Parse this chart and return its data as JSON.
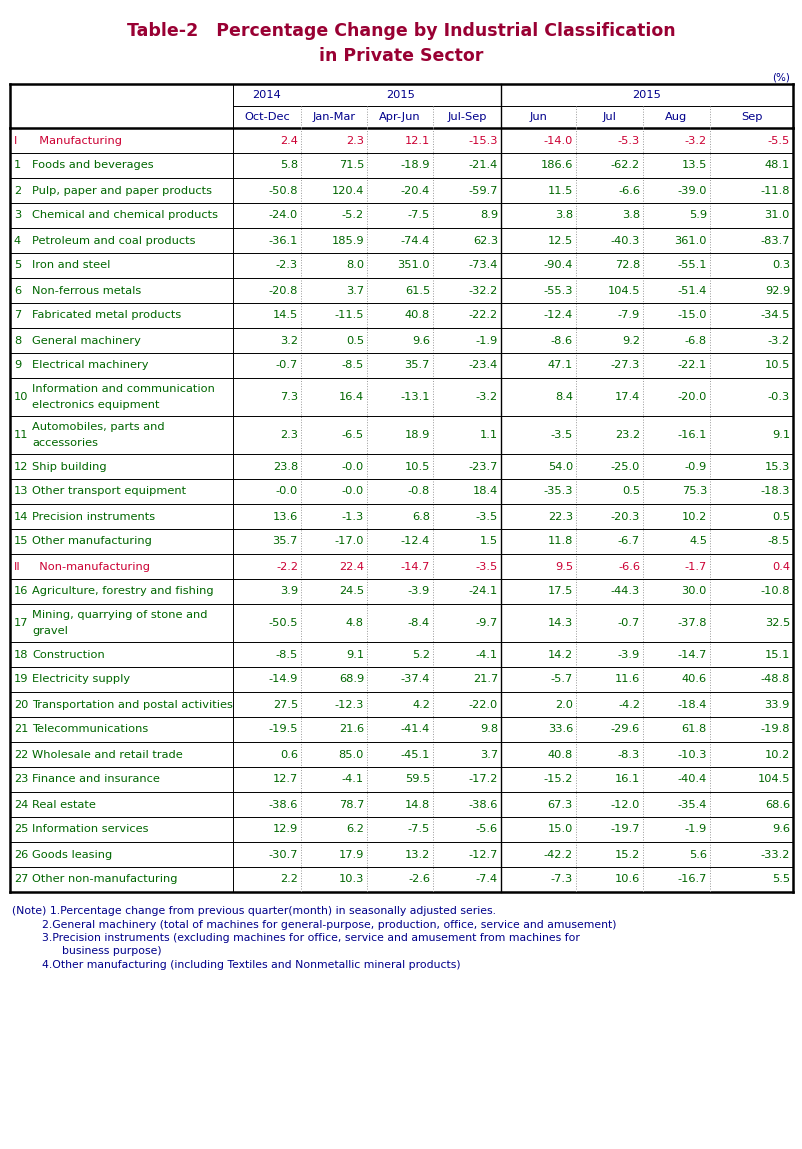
{
  "title_line1": "Table-2   Percentage Change by Industrial Classification",
  "title_line2": "in Private Sector",
  "title_color": "#990033",
  "unit_label": "(%)",
  "header_text_color": "#00008B",
  "rows": [
    {
      "num": "I",
      "label": "  Manufacturing",
      "values": [
        "2.4",
        "2.3",
        "12.1",
        "-15.3",
        "-14.0",
        "-5.3",
        "-3.2",
        "-5.5"
      ],
      "label_color": "#cc0033",
      "value_color": "#cc0033",
      "bold": true,
      "multiline": false
    },
    {
      "num": "1",
      "label": "Foods and beverages",
      "values": [
        "5.8",
        "71.5",
        "-18.9",
        "-21.4",
        "186.6",
        "-62.2",
        "13.5",
        "48.1"
      ],
      "label_color": "#006600",
      "value_color": "#006600",
      "bold": false,
      "multiline": false
    },
    {
      "num": "2",
      "label": "Pulp, paper and paper products",
      "values": [
        "-50.8",
        "120.4",
        "-20.4",
        "-59.7",
        "11.5",
        "-6.6",
        "-39.0",
        "-11.8"
      ],
      "label_color": "#006600",
      "value_color": "#006600",
      "bold": false,
      "multiline": false
    },
    {
      "num": "3",
      "label": "Chemical and chemical products",
      "values": [
        "-24.0",
        "-5.2",
        "-7.5",
        "8.9",
        "3.8",
        "3.8",
        "5.9",
        "31.0"
      ],
      "label_color": "#006600",
      "value_color": "#006600",
      "bold": false,
      "multiline": false
    },
    {
      "num": "4",
      "label": "Petroleum and coal products",
      "values": [
        "-36.1",
        "185.9",
        "-74.4",
        "62.3",
        "12.5",
        "-40.3",
        "361.0",
        "-83.7"
      ],
      "label_color": "#006600",
      "value_color": "#006600",
      "bold": false,
      "multiline": false
    },
    {
      "num": "5",
      "label": "Iron and steel",
      "values": [
        "-2.3",
        "8.0",
        "351.0",
        "-73.4",
        "-90.4",
        "72.8",
        "-55.1",
        "0.3"
      ],
      "label_color": "#006600",
      "value_color": "#006600",
      "bold": false,
      "multiline": false
    },
    {
      "num": "6",
      "label": "Non-ferrous metals",
      "values": [
        "-20.8",
        "3.7",
        "61.5",
        "-32.2",
        "-55.3",
        "104.5",
        "-51.4",
        "92.9"
      ],
      "label_color": "#006600",
      "value_color": "#006600",
      "bold": false,
      "multiline": false
    },
    {
      "num": "7",
      "label": "Fabricated metal products",
      "values": [
        "14.5",
        "-11.5",
        "40.8",
        "-22.2",
        "-12.4",
        "-7.9",
        "-15.0",
        "-34.5"
      ],
      "label_color": "#006600",
      "value_color": "#006600",
      "bold": false,
      "multiline": false
    },
    {
      "num": "8",
      "label": "General machinery",
      "values": [
        "3.2",
        "0.5",
        "9.6",
        "-1.9",
        "-8.6",
        "9.2",
        "-6.8",
        "-3.2"
      ],
      "label_color": "#006600",
      "value_color": "#006600",
      "bold": false,
      "multiline": false
    },
    {
      "num": "9",
      "label": "Electrical machinery",
      "values": [
        "-0.7",
        "-8.5",
        "35.7",
        "-23.4",
        "47.1",
        "-27.3",
        "-22.1",
        "10.5"
      ],
      "label_color": "#006600",
      "value_color": "#006600",
      "bold": false,
      "multiline": false
    },
    {
      "num": "10",
      "label": "Information and communication\nelectronics equipment",
      "values": [
        "7.3",
        "16.4",
        "-13.1",
        "-3.2",
        "8.4",
        "17.4",
        "-20.0",
        "-0.3"
      ],
      "label_color": "#006600",
      "value_color": "#006600",
      "bold": false,
      "multiline": true
    },
    {
      "num": "11",
      "label": "Automobiles, parts and\naccessories",
      "values": [
        "2.3",
        "-6.5",
        "18.9",
        "1.1",
        "-3.5",
        "23.2",
        "-16.1",
        "9.1"
      ],
      "label_color": "#006600",
      "value_color": "#006600",
      "bold": false,
      "multiline": true
    },
    {
      "num": "12",
      "label": "Ship building",
      "values": [
        "23.8",
        "-0.0",
        "10.5",
        "-23.7",
        "54.0",
        "-25.0",
        "-0.9",
        "15.3"
      ],
      "label_color": "#006600",
      "value_color": "#006600",
      "bold": false,
      "multiline": false
    },
    {
      "num": "13",
      "label": "Other transport equipment",
      "values": [
        "-0.0",
        "-0.0",
        "-0.8",
        "18.4",
        "-35.3",
        "0.5",
        "75.3",
        "-18.3"
      ],
      "label_color": "#006600",
      "value_color": "#006600",
      "bold": false,
      "multiline": false
    },
    {
      "num": "14",
      "label": "Precision instruments",
      "values": [
        "13.6",
        "-1.3",
        "6.8",
        "-3.5",
        "22.3",
        "-20.3",
        "10.2",
        "0.5"
      ],
      "label_color": "#006600",
      "value_color": "#006600",
      "bold": false,
      "multiline": false
    },
    {
      "num": "15",
      "label": "Other manufacturing",
      "values": [
        "35.7",
        "-17.0",
        "-12.4",
        "1.5",
        "11.8",
        "-6.7",
        "4.5",
        "-8.5"
      ],
      "label_color": "#006600",
      "value_color": "#006600",
      "bold": false,
      "multiline": false
    },
    {
      "num": "II",
      "label": "  Non-manufacturing",
      "values": [
        "-2.2",
        "22.4",
        "-14.7",
        "-3.5",
        "9.5",
        "-6.6",
        "-1.7",
        "0.4"
      ],
      "label_color": "#cc0033",
      "value_color": "#cc0033",
      "bold": true,
      "multiline": false
    },
    {
      "num": "16",
      "label": "Agriculture, forestry and fishing",
      "values": [
        "3.9",
        "24.5",
        "-3.9",
        "-24.1",
        "17.5",
        "-44.3",
        "30.0",
        "-10.8"
      ],
      "label_color": "#006600",
      "value_color": "#006600",
      "bold": false,
      "multiline": false
    },
    {
      "num": "17",
      "label": "Mining, quarrying of stone and\ngravel",
      "values": [
        "-50.5",
        "4.8",
        "-8.4",
        "-9.7",
        "14.3",
        "-0.7",
        "-37.8",
        "32.5"
      ],
      "label_color": "#006600",
      "value_color": "#006600",
      "bold": false,
      "multiline": true
    },
    {
      "num": "18",
      "label": "Construction",
      "values": [
        "-8.5",
        "9.1",
        "5.2",
        "-4.1",
        "14.2",
        "-3.9",
        "-14.7",
        "15.1"
      ],
      "label_color": "#006600",
      "value_color": "#006600",
      "bold": false,
      "multiline": false
    },
    {
      "num": "19",
      "label": "Electricity supply",
      "values": [
        "-14.9",
        "68.9",
        "-37.4",
        "21.7",
        "-5.7",
        "11.6",
        "40.6",
        "-48.8"
      ],
      "label_color": "#006600",
      "value_color": "#006600",
      "bold": false,
      "multiline": false
    },
    {
      "num": "20",
      "label": "Transportation and postal activities",
      "values": [
        "27.5",
        "-12.3",
        "4.2",
        "-22.0",
        "2.0",
        "-4.2",
        "-18.4",
        "33.9"
      ],
      "label_color": "#006600",
      "value_color": "#006600",
      "bold": false,
      "multiline": false
    },
    {
      "num": "21",
      "label": "Telecommunications",
      "values": [
        "-19.5",
        "21.6",
        "-41.4",
        "9.8",
        "33.6",
        "-29.6",
        "61.8",
        "-19.8"
      ],
      "label_color": "#006600",
      "value_color": "#006600",
      "bold": false,
      "multiline": false
    },
    {
      "num": "22",
      "label": "Wholesale and retail trade",
      "values": [
        "0.6",
        "85.0",
        "-45.1",
        "3.7",
        "40.8",
        "-8.3",
        "-10.3",
        "10.2"
      ],
      "label_color": "#006600",
      "value_color": "#006600",
      "bold": false,
      "multiline": false
    },
    {
      "num": "23",
      "label": "Finance and insurance",
      "values": [
        "12.7",
        "-4.1",
        "59.5",
        "-17.2",
        "-15.2",
        "16.1",
        "-40.4",
        "104.5"
      ],
      "label_color": "#006600",
      "value_color": "#006600",
      "bold": false,
      "multiline": false
    },
    {
      "num": "24",
      "label": "Real estate",
      "values": [
        "-38.6",
        "78.7",
        "14.8",
        "-38.6",
        "67.3",
        "-12.0",
        "-35.4",
        "68.6"
      ],
      "label_color": "#006600",
      "value_color": "#006600",
      "bold": false,
      "multiline": false
    },
    {
      "num": "25",
      "label": "Information services",
      "values": [
        "12.9",
        "6.2",
        "-7.5",
        "-5.6",
        "15.0",
        "-19.7",
        "-1.9",
        "9.6"
      ],
      "label_color": "#006600",
      "value_color": "#006600",
      "bold": false,
      "multiline": false
    },
    {
      "num": "26",
      "label": "Goods leasing",
      "values": [
        "-30.7",
        "17.9",
        "13.2",
        "-12.7",
        "-42.2",
        "15.2",
        "5.6",
        "-33.2"
      ],
      "label_color": "#006600",
      "value_color": "#006600",
      "bold": false,
      "multiline": false
    },
    {
      "num": "27",
      "label": "Other non-manufacturing",
      "values": [
        "2.2",
        "10.3",
        "-2.6",
        "-7.4",
        "-7.3",
        "10.6",
        "-16.7",
        "5.5"
      ],
      "label_color": "#006600",
      "value_color": "#006600",
      "bold": false,
      "multiline": false
    }
  ],
  "notes": [
    [
      "(Note) 1.Percentage change from previous quarter(month) in seasonally adjusted series.",
      12
    ],
    [
      "        2.General machinery (total of machines for general-purpose, production, office, service and amusement)",
      40
    ],
    [
      "        3.Precision instruments (excluding machines for office, service and amusement from machines for",
      40
    ],
    [
      "              business purpose)",
      52
    ],
    [
      "        4.Other manufacturing (including Textiles and Nonmetallic mineral products)",
      40
    ]
  ],
  "note_color": "#00008B",
  "bg_color": "#ffffff"
}
